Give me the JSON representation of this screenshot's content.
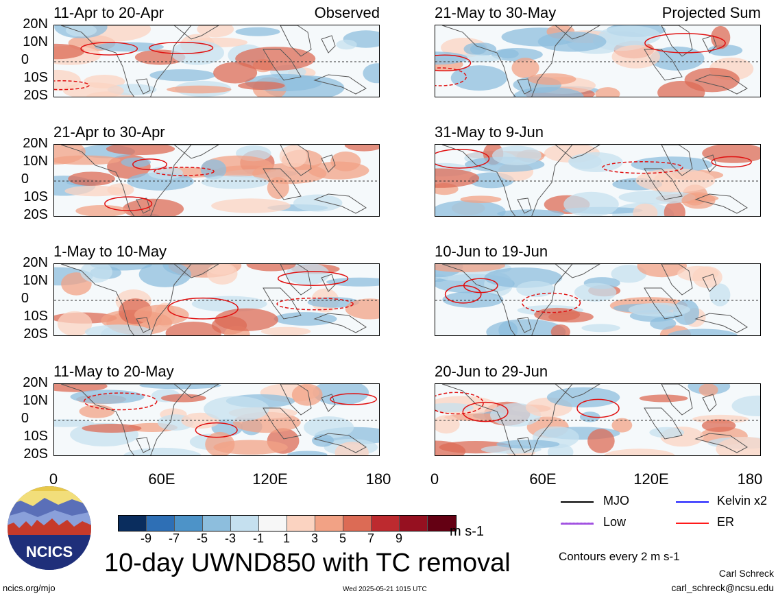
{
  "panels": [
    {
      "title": "11-Apr to 20-Apr",
      "tag": "Observed"
    },
    {
      "title": "21-May to 30-May",
      "tag": "Projected Sum"
    },
    {
      "title": "21-Apr to 30-Apr",
      "tag": ""
    },
    {
      "title": "31-May to 9-Jun",
      "tag": ""
    },
    {
      "title": "1-May to 10-May",
      "tag": ""
    },
    {
      "title": "10-Jun to 19-Jun",
      "tag": ""
    },
    {
      "title": "11-May to 20-May",
      "tag": ""
    },
    {
      "title": "20-Jun to 29-Jun",
      "tag": ""
    }
  ],
  "y_labels": [
    "20N",
    "10N",
    "0",
    "10S",
    "20S"
  ],
  "x_labels": [
    "0",
    "60E",
    "120E",
    "180"
  ],
  "colorbar": {
    "colors": [
      "#0a2d5e",
      "#2e6fb5",
      "#4d93c8",
      "#8dbedd",
      "#c5e0ef",
      "#f7f7f7",
      "#fbd3c1",
      "#f2a285",
      "#dc6b55",
      "#bd2a2f",
      "#961020",
      "#640013"
    ],
    "ticks": [
      "-9",
      "-7",
      "-5",
      "-3",
      "-1",
      "1",
      "3",
      "5",
      "7",
      "9"
    ],
    "unit": "m s-1"
  },
  "chart_title": "10-day UWND850 with TC removal",
  "legend": [
    {
      "label": "MJO",
      "color": "#000000"
    },
    {
      "label": "Kelvin x2",
      "color": "#1a1aff"
    },
    {
      "label": "Low",
      "color": "#a050e0"
    },
    {
      "label": "ER",
      "color": "#ff1a1a"
    }
  ],
  "contour_note": "Contours every 2 m s-1",
  "author": "Carl Schreck",
  "email": "carl_schreck@ncsu.edu",
  "url": "ncics.org/mjo",
  "timestamp": "Wed 2025-05-21 1015 UTC",
  "logo_text": "NCICS"
}
